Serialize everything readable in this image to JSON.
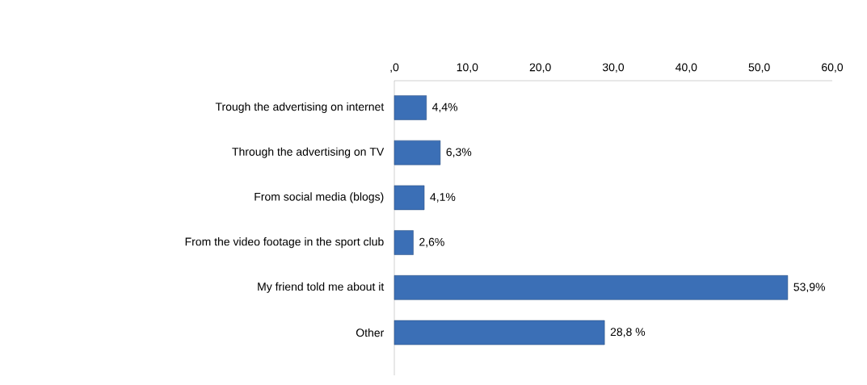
{
  "chart_data": {
    "type": "bar",
    "orientation": "horizontal",
    "categories": [
      "Trough the advertising on internet",
      "Through the advertising on TV",
      "From social media (blogs)",
      "From the video footage in the sport club",
      "My friend told me about it",
      "Other"
    ],
    "values": [
      4.4,
      6.3,
      4.1,
      2.6,
      53.9,
      28.8
    ],
    "value_labels": [
      "4,4%",
      "6,3%",
      "4,1%",
      "2,6%",
      "53,9%",
      "28,8 %"
    ],
    "color": "#3b6fb6",
    "xlim": [
      0,
      60
    ],
    "xticks": [
      {
        "value": 0,
        "label": ",0"
      },
      {
        "value": 10,
        "label": "10,0"
      },
      {
        "value": 20,
        "label": "20,0"
      },
      {
        "value": 30,
        "label": "30,0"
      },
      {
        "value": 40,
        "label": "40,0"
      },
      {
        "value": 50,
        "label": "50,0"
      },
      {
        "value": 60,
        "label": "60,0"
      }
    ]
  }
}
